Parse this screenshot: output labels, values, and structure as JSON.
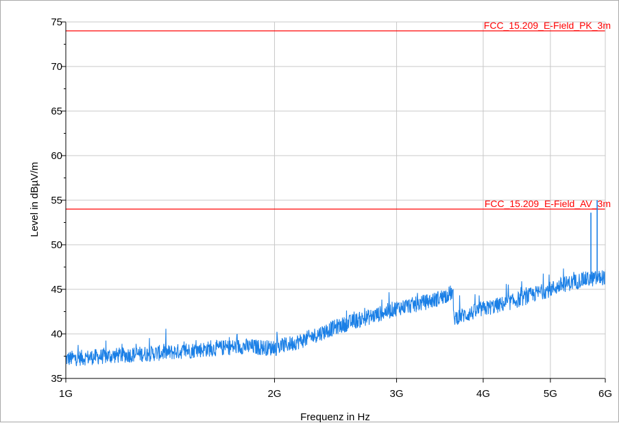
{
  "chart_data": {
    "type": "line",
    "xlabel": "Frequenz in Hz",
    "ylabel": "Level in dBµV/m",
    "x_scale": "log",
    "xlim": [
      1000000000,
      6000000000
    ],
    "ylim": [
      35,
      75
    ],
    "x_ticks": [
      {
        "value": 1000000000,
        "label": "1G"
      },
      {
        "value": 2000000000,
        "label": "2G"
      },
      {
        "value": 3000000000,
        "label": "3G"
      },
      {
        "value": 4000000000,
        "label": "4G"
      },
      {
        "value": 5000000000,
        "label": "5G"
      },
      {
        "value": 6000000000,
        "label": "6G"
      }
    ],
    "y_ticks": [
      35,
      40,
      45,
      50,
      55,
      60,
      65,
      70,
      75
    ],
    "grid": true,
    "limit_lines": [
      {
        "name": "FCC_15.209_E-Field_PK_3m",
        "value": 74,
        "color": "#ff0000"
      },
      {
        "name": "FCC_15.209_E-Field_AV_3m",
        "value": 54,
        "color": "#ff0000"
      }
    ],
    "series": [
      {
        "color": "#1a7fe6",
        "x": [
          1000000000,
          1200000000,
          1400000000,
          1600000000,
          1800000000,
          2000000000,
          2200000000,
          2400000000,
          2600000000,
          2800000000,
          3000000000,
          3200000000,
          3400000000,
          3600000000,
          3620000000,
          3800000000,
          4000000000,
          4200000000,
          4400000000,
          4600000000,
          4800000000,
          5000000000,
          5200000000,
          5400000000,
          5500000000,
          5600000000,
          5800000000,
          6000000000
        ],
        "y": [
          37.2,
          37.6,
          37.9,
          38.3,
          38.6,
          38.4,
          39.3,
          40.5,
          41.4,
          42.1,
          42.9,
          43.3,
          43.8,
          44.6,
          41.8,
          42.2,
          42.8,
          43.2,
          43.6,
          44.1,
          44.6,
          45.0,
          45.5,
          45.8,
          46.0,
          46.1,
          46.2,
          46.4
        ],
        "spikes": [
          {
            "x": 5720000000,
            "y": 53.6
          },
          {
            "x": 5840000000,
            "y": 55.0
          }
        ]
      }
    ]
  }
}
